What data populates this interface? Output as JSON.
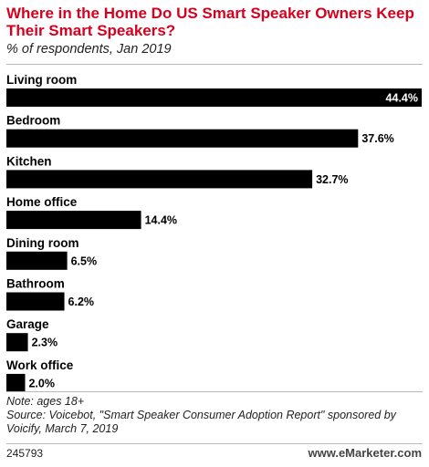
{
  "chart_data": {
    "type": "bar",
    "orientation": "horizontal",
    "title": "Where in the Home Do US Smart Speaker Owners Keep Their Smart Speakers?",
    "subtitle": "% of respondents, Jan 2019",
    "categories": [
      "Living room",
      "Bedroom",
      "Kitchen",
      "Home office",
      "Dining room",
      "Bathroom",
      "Garage",
      "Work office"
    ],
    "values": [
      44.4,
      37.6,
      32.7,
      14.4,
      6.5,
      6.2,
      2.3,
      2.0
    ],
    "value_labels": [
      "44.4%",
      "37.6%",
      "32.7%",
      "14.4%",
      "6.5%",
      "6.2%",
      "2.3%",
      "2.0%"
    ],
    "xlim": [
      0,
      44.4
    ],
    "grid": false,
    "bar_color": "#000000"
  },
  "footer": {
    "note": "Note: ages 18+",
    "source": "Source: Voicebot, \"Smart Speaker Consumer Adoption Report\" sponsored by Voicify, March 7, 2019",
    "id": "245793",
    "brand": "www.eMarketer.com"
  },
  "colors": {
    "title": "#d8001f",
    "bars": "#000000",
    "rule": "#b8b8b8"
  }
}
